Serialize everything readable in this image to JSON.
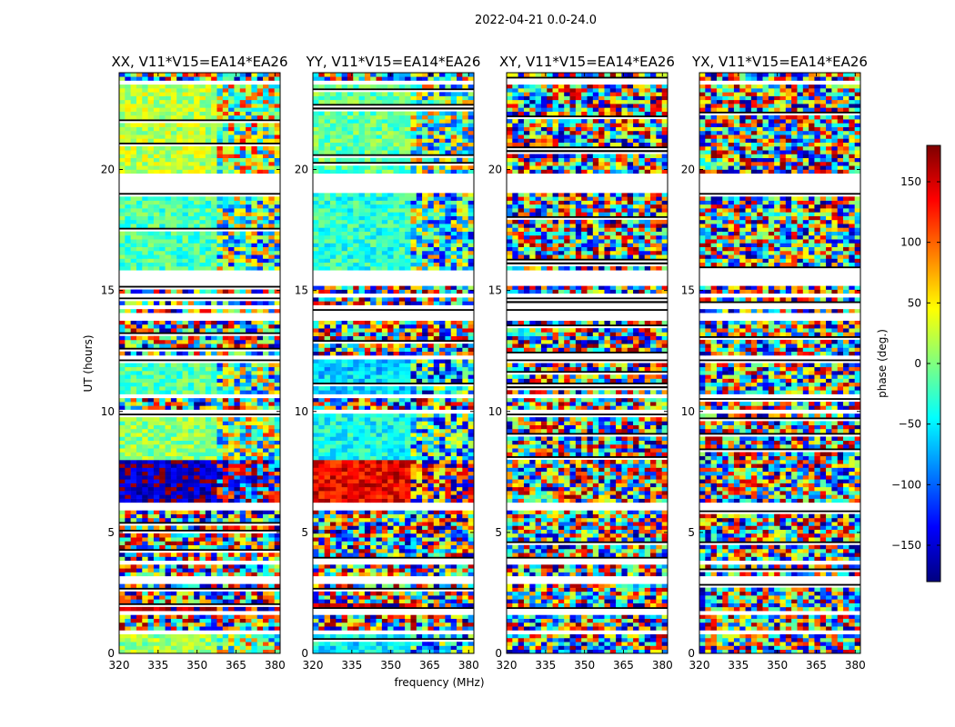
{
  "figure_title": "2022-04-21 0.0-24.0",
  "chart_data": {
    "type": "heatmap",
    "suptitle": "2022-04-21 0.0-24.0",
    "xlabel": "frequency (MHz)",
    "ylabel": "UT (hours)",
    "xlim": [
      320,
      382
    ],
    "ylim": [
      0,
      24
    ],
    "x_ticks": [
      320,
      335,
      350,
      365,
      380
    ],
    "y_ticks": [
      0,
      5,
      10,
      15,
      20
    ],
    "colorbar": {
      "label": "phase (deg.)",
      "range": [
        -180,
        180
      ],
      "ticks": [
        150,
        100,
        50,
        0,
        -50,
        -100,
        -150
      ],
      "tick_labels": [
        "150",
        "100",
        "50",
        "0",
        "−50",
        "−100",
        "−150"
      ],
      "colormap": [
        "#00007f",
        "#0000ff",
        "#007fff",
        "#00ffff",
        "#7fff7f",
        "#ffff00",
        "#ff7f00",
        "#ff0000",
        "#7f0000"
      ]
    },
    "flagged_gaps_hours": [
      [
        0.85,
        0.95
      ],
      [
        1.6,
        1.7
      ],
      [
        2.05,
        2.15
      ],
      [
        2.85,
        3.25
      ],
      [
        3.65,
        3.85
      ],
      [
        5.95,
        6.25
      ],
      [
        9.95,
        10.05
      ],
      [
        10.6,
        10.7
      ],
      [
        12.15,
        12.25
      ],
      [
        13.75,
        14.05
      ],
      [
        14.25,
        14.45
      ],
      [
        14.7,
        14.85
      ],
      [
        15.2,
        15.6
      ],
      [
        15.7,
        15.8
      ],
      [
        19.05,
        19.85
      ],
      [
        23.6,
        23.7
      ]
    ],
    "panels": [
      {
        "title": "XX, V11*V15=EA14*EA26",
        "description": "baseline phase vs frequency/time; coherent regions near 0 deg with a strong negative-phase band at 6.3-8.0 h",
        "coherent_bands": [
          {
            "t0": 6.3,
            "t1": 8.0,
            "phase": -160
          },
          {
            "t0": 15.8,
            "t1": 19.0,
            "phase": -20
          },
          {
            "t0": 19.9,
            "t1": 23.5,
            "phase": 20
          },
          {
            "t0": 8.0,
            "t1": 9.9,
            "phase": 5
          },
          {
            "t0": 10.7,
            "t1": 12.1,
            "phase": -15
          },
          {
            "t0": 0.0,
            "t1": 0.85,
            "phase": 10
          },
          {
            "t0": 1.7,
            "t1": 2.05,
            "phase": 170
          }
        ]
      },
      {
        "title": "YY, V11*V15=EA14*EA26",
        "description": "baseline phase vs frequency/time; coherent regions with a strong positive-phase band at 6.3-8.0 h",
        "coherent_bands": [
          {
            "t0": 6.3,
            "t1": 8.0,
            "phase": 140
          },
          {
            "t0": 15.8,
            "t1": 19.0,
            "phase": -30
          },
          {
            "t0": 19.9,
            "t1": 23.5,
            "phase": -10
          },
          {
            "t0": 8.0,
            "t1": 9.9,
            "phase": -40
          },
          {
            "t0": 10.7,
            "t1": 12.1,
            "phase": -60
          },
          {
            "t0": 0.0,
            "t1": 0.85,
            "phase": -50
          },
          {
            "t0": 1.7,
            "t1": 2.05,
            "phase": 160
          }
        ]
      },
      {
        "title": "XY, V11*V15=EA14*EA26",
        "description": "cross-hand phase; predominantly random (noise-like) phases",
        "coherent_bands": []
      },
      {
        "title": "YX, V11*V15=EA14*EA26",
        "description": "cross-hand phase; predominantly random (noise-like) phases",
        "coherent_bands": []
      }
    ]
  }
}
